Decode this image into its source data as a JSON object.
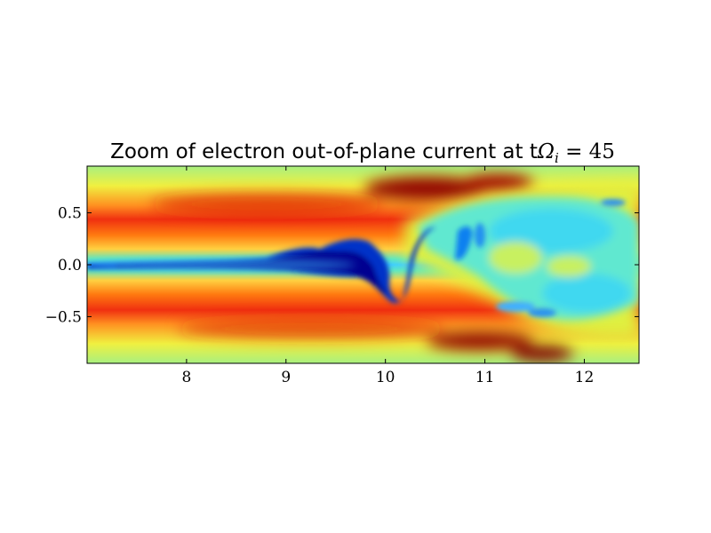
{
  "chart_data": {
    "type": "heatmap",
    "title": "Zoom of electron out-of-plane current at tΩᵢ = 45",
    "title_parts": {
      "text": "Zoom of electron out-of-plane current at t",
      "math": "Ω",
      "math_sub": "i",
      "math_rest": " = 45"
    },
    "xlabel": "",
    "ylabel": "",
    "xlim": [
      7.0,
      12.55
    ],
    "ylim": [
      -0.95,
      0.95
    ],
    "x_ticks": [
      8,
      9,
      10,
      11,
      12
    ],
    "x_tick_labels": [
      "8",
      "9",
      "10",
      "11",
      "12"
    ],
    "y_ticks": [
      0.5,
      0.0,
      -0.5
    ],
    "y_tick_labels": [
      "0.5",
      "0.0",
      "−0.5"
    ],
    "colormap": "jet",
    "grid": false,
    "legend": "none",
    "features": {
      "central_current_sheet": {
        "x_range": [
          7.0,
          9.9
        ],
        "y_center": 0.0,
        "level": "dark blue (negative)"
      },
      "upper_red_band": {
        "x_range": [
          7.0,
          12.55
        ],
        "y_range": [
          0.25,
          0.75
        ],
        "level": "red (positive)"
      },
      "lower_red_band": {
        "x_range": [
          7.0,
          12.55
        ],
        "y_range": [
          -0.75,
          -0.25
        ],
        "level": "red (positive)"
      },
      "turbulent_region": {
        "x_range": [
          10.0,
          12.55
        ],
        "level": "cyan / blue mixing"
      }
    }
  }
}
